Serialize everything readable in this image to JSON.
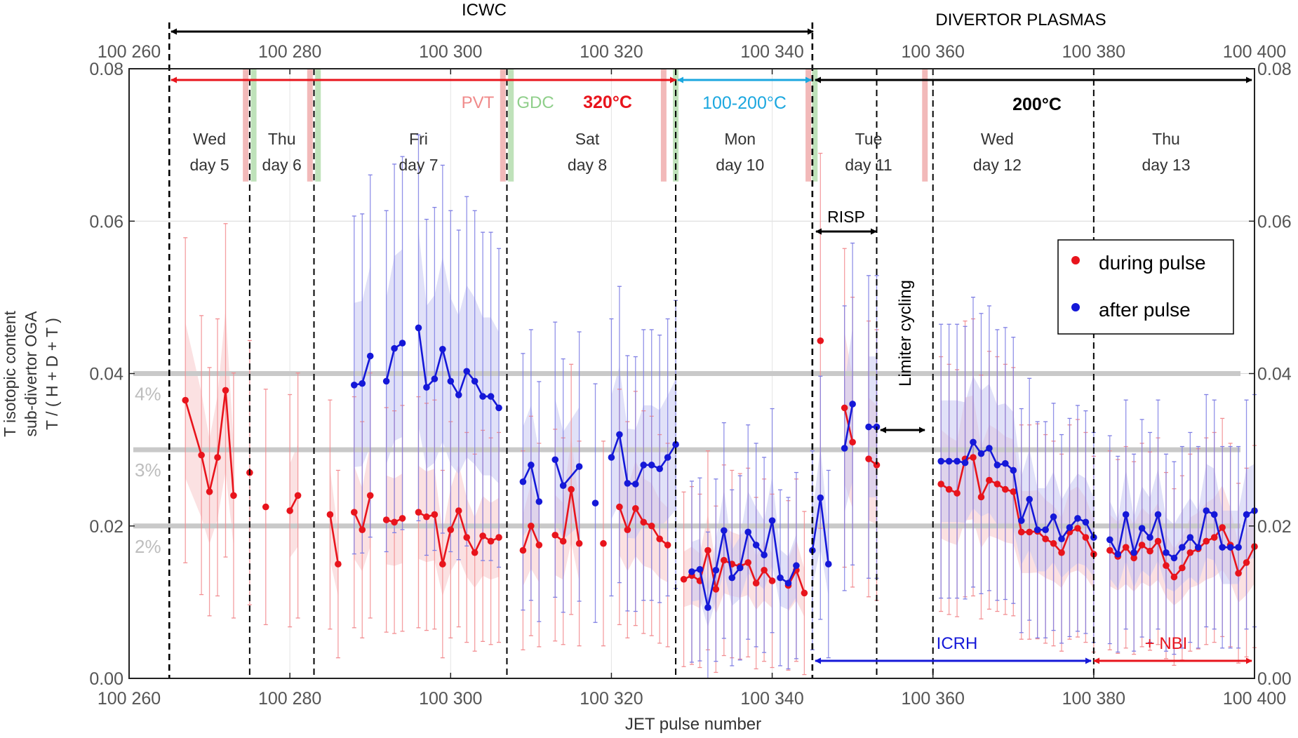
{
  "chart_data": {
    "type": "scatter",
    "title": "",
    "xlabel": "JET pulse number",
    "ylabel_lines": [
      "T isotopic content",
      "sub-divertor OGA",
      "T / ( H + D + T )"
    ],
    "xlim": [
      100260,
      100400
    ],
    "ylim": [
      0,
      0.08
    ],
    "x_ticks": [
      100260,
      100280,
      100300,
      100320,
      100340,
      100360,
      100380,
      100400
    ],
    "x_tick_labels": [
      "100 260",
      "100 280",
      "100 300",
      "100 320",
      "100 340",
      "100 360",
      "100 380",
      "100 400"
    ],
    "y_ticks": [
      0,
      0.02,
      0.04,
      0.06,
      0.08
    ],
    "y_tick_labels": [
      "0.00",
      "0.02",
      "0.04",
      "0.06",
      "0.08"
    ],
    "grid": true,
    "legend_position": "right",
    "reference_lines": [
      {
        "y": 0.04,
        "label": "4%"
      },
      {
        "y": 0.03,
        "label": "3%"
      },
      {
        "y": 0.02,
        "label": "2%"
      }
    ],
    "day_boundaries": [
      100265,
      100275,
      100283,
      100307,
      100328,
      100345,
      100353,
      100360,
      100380
    ],
    "day_labels": [
      {
        "x": 100270,
        "line1": "Wed",
        "line2": "day 5"
      },
      {
        "x": 100279,
        "line1": "Thu",
        "line2": "day 6"
      },
      {
        "x": 100296,
        "line1": "Fri",
        "line2": "day 7"
      },
      {
        "x": 100317,
        "line1": "Sat",
        "line2": "day 8"
      },
      {
        "x": 100336,
        "line1": "Mon",
        "line2": "day 10"
      },
      {
        "x": 100352,
        "line1": "Tue",
        "line2": "day 11"
      },
      {
        "x": 100368,
        "line1": "Wed",
        "line2": "day 12"
      },
      {
        "x": 100389,
        "line1": "Thu",
        "line2": "day 13"
      }
    ],
    "pvt_bands": [
      100274.5,
      100282.5,
      100306.5,
      100326.5,
      100344.5,
      100359
    ],
    "gdc_bands": [
      100275.5,
      100283.5,
      100307.5,
      100328,
      100345.3
    ],
    "annotations": {
      "icwc": "ICWC",
      "divertor": "DIVERTOR PLASMAS",
      "pvt": "PVT",
      "gdc": "GDC",
      "temp_320": "320°C",
      "temp_100_200": "100-200°C",
      "temp_200": "200°C",
      "risp": "RISP",
      "limiter": "Limiter cycling",
      "icrh": "ICRH",
      "nbi": "+ NBI"
    },
    "series": [
      {
        "name": "during pulse",
        "color": "#e8141c",
        "segments": [
          [
            [
              100267,
              0.0365
            ],
            [
              100269,
              0.0293
            ],
            [
              100270,
              0.0245
            ],
            [
              100271,
              0.029
            ],
            [
              100272,
              0.0378
            ],
            [
              100273,
              0.024
            ]
          ],
          [
            [
              100275,
              0.027
            ]
          ],
          [
            [
              100277,
              0.0225
            ]
          ],
          [
            [
              100280,
              0.022
            ],
            [
              100281,
              0.024
            ]
          ],
          [
            [
              100285,
              0.0215
            ],
            [
              100286,
              0.015
            ]
          ],
          [
            [
              100288,
              0.0218
            ],
            [
              100289,
              0.0195
            ],
            [
              100290,
              0.024
            ]
          ],
          [
            [
              100292,
              0.0208
            ],
            [
              100293,
              0.0205
            ],
            [
              100294,
              0.021
            ]
          ],
          [
            [
              100296,
              0.0218
            ],
            [
              100297,
              0.0212
            ],
            [
              100298,
              0.0215
            ],
            [
              100299,
              0.015
            ],
            [
              100300,
              0.0195
            ],
            [
              100301,
              0.022
            ],
            [
              100302,
              0.0185
            ],
            [
              100303,
              0.0165
            ],
            [
              100304,
              0.0187
            ],
            [
              100305,
              0.018
            ],
            [
              100306,
              0.0185
            ]
          ],
          [
            [
              100309,
              0.0168
            ],
            [
              100310,
              0.02
            ],
            [
              100311,
              0.0175
            ]
          ],
          [
            [
              100313,
              0.0188
            ],
            [
              100314,
              0.018
            ],
            [
              100315,
              0.0248
            ],
            [
              100316,
              0.0177
            ]
          ],
          [
            [
              100319,
              0.0177
            ]
          ],
          [
            [
              100321,
              0.0225
            ],
            [
              100322,
              0.0195
            ],
            [
              100323,
              0.0223
            ],
            [
              100324,
              0.0205
            ],
            [
              100325,
              0.02
            ],
            [
              100326,
              0.0183
            ],
            [
              100327,
              0.0175
            ]
          ],
          [
            [
              100329,
              0.013
            ],
            [
              100330,
              0.0135
            ],
            [
              100331,
              0.0128
            ],
            [
              100332,
              0.0168
            ],
            [
              100333,
              0.0117
            ],
            [
              100334,
              0.0155
            ],
            [
              100335,
              0.015
            ],
            [
              100336,
              0.0147
            ],
            [
              100337,
              0.0152
            ],
            [
              100338,
              0.0125
            ],
            [
              100339,
              0.0142
            ],
            [
              100340,
              0.0128
            ]
          ],
          [
            [
              100342,
              0.0122
            ],
            [
              100343,
              0.0142
            ],
            [
              100344,
              0.0112
            ]
          ],
          [
            [
              100346,
              0.0443
            ]
          ],
          [
            [
              100349,
              0.0355
            ],
            [
              100350,
              0.031
            ]
          ],
          [
            [
              100352,
              0.0288
            ],
            [
              100353,
              0.028
            ]
          ],
          [
            [
              100361,
              0.0255
            ],
            [
              100362,
              0.0248
            ],
            [
              100363,
              0.0243
            ],
            [
              100364,
              0.0288
            ],
            [
              100365,
              0.029
            ],
            [
              100366,
              0.0238
            ],
            [
              100367,
              0.026
            ],
            [
              100368,
              0.0255
            ],
            [
              100369,
              0.0248
            ],
            [
              100370,
              0.0245
            ],
            [
              100371,
              0.0192
            ],
            [
              100372,
              0.0192
            ],
            [
              100373,
              0.0193
            ],
            [
              100374,
              0.0183
            ],
            [
              100375,
              0.0177
            ],
            [
              100376,
              0.0165
            ],
            [
              100377,
              0.0192
            ],
            [
              100378,
              0.0197
            ],
            [
              100379,
              0.0185
            ],
            [
              100380,
              0.0163
            ]
          ],
          [
            [
              100382,
              0.0168
            ],
            [
              100383,
              0.016
            ],
            [
              100384,
              0.0172
            ],
            [
              100385,
              0.0158
            ],
            [
              100386,
              0.0175
            ],
            [
              100387,
              0.0167
            ],
            [
              100388,
              0.018
            ],
            [
              100389,
              0.0148
            ],
            [
              100390,
              0.0133
            ],
            [
              100391,
              0.0145
            ],
            [
              100392,
              0.0165
            ],
            [
              100393,
              0.017
            ],
            [
              100394,
              0.018
            ],
            [
              100395,
              0.0185
            ],
            [
              100396,
              0.0198
            ],
            [
              100397,
              0.0175
            ],
            [
              100398,
              0.0138
            ],
            [
              100399,
              0.0152
            ],
            [
              100400,
              0.0173
            ]
          ]
        ]
      },
      {
        "name": "after pulse",
        "color": "#1518d8",
        "segments": [
          [
            [
              100288,
              0.0385
            ],
            [
              100289,
              0.0387
            ],
            [
              100290,
              0.0423
            ]
          ],
          [
            [
              100292,
              0.039
            ],
            [
              100293,
              0.0433
            ],
            [
              100294,
              0.044
            ]
          ],
          [
            [
              100296,
              0.046
            ],
            [
              100297,
              0.0382
            ],
            [
              100298,
              0.0393
            ],
            [
              100299,
              0.0432
            ],
            [
              100300,
              0.039
            ],
            [
              100301,
              0.0372
            ],
            [
              100302,
              0.0403
            ],
            [
              100303,
              0.039
            ],
            [
              100304,
              0.037
            ],
            [
              100305,
              0.037
            ],
            [
              100306,
              0.0355
            ]
          ],
          [
            [
              100309,
              0.0258
            ],
            [
              100310,
              0.028
            ],
            [
              100311,
              0.0232
            ]
          ],
          [
            [
              100313,
              0.0287
            ],
            [
              100314,
              0.0253
            ],
            [
              100316,
              0.0278
            ]
          ],
          [
            [
              100318,
              0.023
            ]
          ],
          [
            [
              100320,
              0.029
            ],
            [
              100321,
              0.032
            ],
            [
              100322,
              0.0256
            ],
            [
              100323,
              0.0255
            ],
            [
              100324,
              0.028
            ],
            [
              100325,
              0.028
            ],
            [
              100326,
              0.0275
            ],
            [
              100327,
              0.029
            ],
            [
              100328,
              0.0307
            ]
          ],
          [
            [
              100330,
              0.014
            ],
            [
              100331,
              0.0143
            ],
            [
              100332,
              0.0093
            ],
            [
              100333,
              0.0142
            ],
            [
              100334,
              0.0194
            ],
            [
              100335,
              0.0132
            ],
            [
              100336,
              0.0145
            ],
            [
              100337,
              0.0192
            ],
            [
              100338,
              0.0175
            ],
            [
              100339,
              0.0162
            ],
            [
              100340,
              0.0207
            ],
            [
              100341,
              0.0132
            ],
            [
              100342,
              0.0125
            ],
            [
              100343,
              0.0148
            ]
          ],
          [
            [
              100345,
              0.0168
            ],
            [
              100346,
              0.0237
            ],
            [
              100347,
              0.015
            ]
          ],
          [
            [
              100349,
              0.0302
            ],
            [
              100350,
              0.036
            ]
          ],
          [
            [
              100352,
              0.033
            ],
            [
              100353,
              0.033
            ]
          ],
          [
            [
              100361,
              0.0285
            ],
            [
              100362,
              0.0285
            ],
            [
              100363,
              0.0285
            ],
            [
              100364,
              0.0283
            ],
            [
              100365,
              0.031
            ],
            [
              100366,
              0.0295
            ],
            [
              100367,
              0.0302
            ],
            [
              100368,
              0.028
            ],
            [
              100369,
              0.0282
            ],
            [
              100370,
              0.0273
            ],
            [
              100371,
              0.0207
            ],
            [
              100372,
              0.0235
            ],
            [
              100373,
              0.0195
            ],
            [
              100374,
              0.0195
            ],
            [
              100375,
              0.0212
            ],
            [
              100376,
              0.0183
            ],
            [
              100377,
              0.0198
            ],
            [
              100378,
              0.021
            ],
            [
              100379,
              0.0205
            ],
            [
              100380,
              0.0185
            ]
          ],
          [
            [
              100382,
              0.0182
            ],
            [
              100383,
              0.0163
            ],
            [
              100384,
              0.0215
            ],
            [
              100385,
              0.0165
            ],
            [
              100386,
              0.0197
            ],
            [
              100387,
              0.0185
            ],
            [
              100388,
              0.0215
            ],
            [
              100389,
              0.0165
            ],
            [
              100390,
              0.0158
            ],
            [
              100391,
              0.0172
            ],
            [
              100392,
              0.0185
            ],
            [
              100393,
              0.0172
            ],
            [
              100394,
              0.022
            ],
            [
              100395,
              0.0215
            ],
            [
              100396,
              0.0172
            ],
            [
              100397,
              0.0172
            ],
            [
              100398,
              0.0172
            ],
            [
              100399,
              0.0215
            ],
            [
              100400,
              0.022
            ]
          ]
        ]
      }
    ]
  }
}
